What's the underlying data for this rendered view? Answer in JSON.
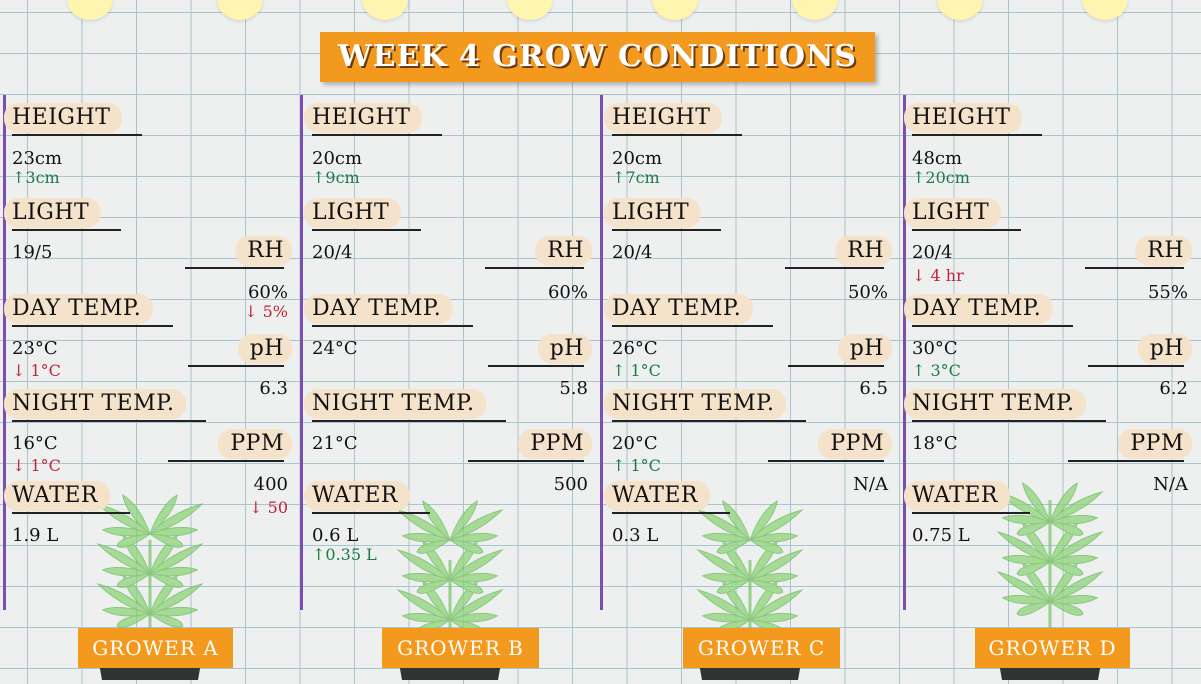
{
  "title": "WEEK 4 GROW CONDITIONS",
  "labels": {
    "height": "HEIGHT",
    "light": "LIGHT",
    "day_temp": "DAY TEMP.",
    "night_temp": "NIGHT TEMP.",
    "water": "WATER",
    "rh": "RH",
    "ph": "pH",
    "ppm": "PPM"
  },
  "colors": {
    "accent": "#f39a1e",
    "label_bg": "#f5e2cb",
    "up": "#1a7a45",
    "down": "#c4223a",
    "divider": "#7a4fb0"
  },
  "growers": [
    {
      "name": "GROWER A",
      "height": "23cm",
      "height_delta": "↑3cm",
      "height_dir": "up",
      "light": "19/5",
      "light_delta": "",
      "light_dir": "",
      "day_temp": "23°C",
      "day_temp_delta": "↓ 1°C",
      "day_temp_dir": "down",
      "night_temp": "16°C",
      "night_temp_delta": "↓ 1°C",
      "night_temp_dir": "down",
      "water": "1.9 L",
      "water_delta": "",
      "water_dir": "",
      "rh": "60%",
      "rh_delta": "↓ 5%",
      "rh_dir": "down",
      "ph": "6.3",
      "ppm": "400",
      "ppm_delta": "↓ 50",
      "ppm_dir": "down"
    },
    {
      "name": "GROWER B",
      "height": "20cm",
      "height_delta": "↑9cm",
      "height_dir": "up",
      "light": "20/4",
      "light_delta": "",
      "light_dir": "",
      "day_temp": "24°C",
      "day_temp_delta": "",
      "day_temp_dir": "",
      "night_temp": "21°C",
      "night_temp_delta": "",
      "night_temp_dir": "",
      "water": "0.6 L",
      "water_delta": "↑0.35 L",
      "water_dir": "up",
      "rh": "60%",
      "rh_delta": "",
      "rh_dir": "",
      "ph": "5.8",
      "ppm": "500",
      "ppm_delta": "",
      "ppm_dir": ""
    },
    {
      "name": "GROWER C",
      "height": "20cm",
      "height_delta": "↑7cm",
      "height_dir": "up",
      "light": "20/4",
      "light_delta": "",
      "light_dir": "",
      "day_temp": "26°C",
      "day_temp_delta": "↑ 1°C",
      "day_temp_dir": "up",
      "night_temp": "20°C",
      "night_temp_delta": "↑ 1°C",
      "night_temp_dir": "up",
      "water": "0.3 L",
      "water_delta": "",
      "water_dir": "",
      "rh": "50%",
      "rh_delta": "",
      "rh_dir": "",
      "ph": "6.5",
      "ppm": "N/A",
      "ppm_delta": "",
      "ppm_dir": ""
    },
    {
      "name": "GROWER D",
      "height": "48cm",
      "height_delta": "↑20cm",
      "height_dir": "up",
      "light": "20/4",
      "light_delta": "↓ 4 hr",
      "light_dir": "down",
      "day_temp": "30°C",
      "day_temp_delta": "↑ 3°C",
      "day_temp_dir": "up",
      "night_temp": "18°C",
      "night_temp_delta": "",
      "night_temp_dir": "",
      "water": "0.75 L",
      "water_delta": "",
      "water_dir": "",
      "rh": "55%",
      "rh_delta": "",
      "rh_dir": "",
      "ph": "6.2",
      "ppm": "N/A",
      "ppm_delta": "",
      "ppm_dir": ""
    }
  ]
}
